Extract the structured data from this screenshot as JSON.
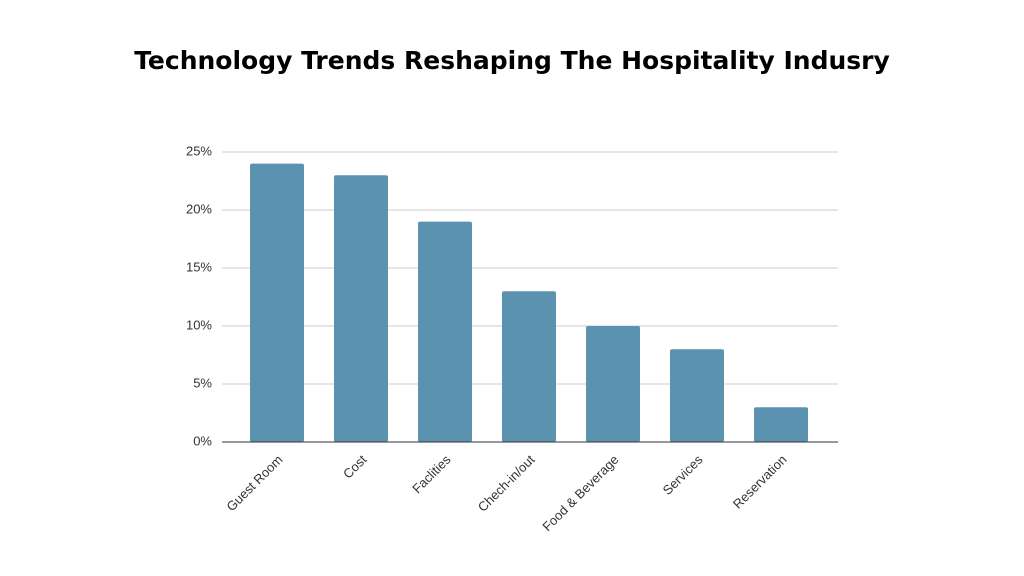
{
  "chart_data": {
    "type": "bar",
    "title": "Technology Trends Reshaping The Hospitality Indusry",
    "categories": [
      "Guest Room",
      "Cost",
      "Faclities",
      "Chech-in/out",
      "Food & Beverage",
      "Services",
      "Reservation"
    ],
    "values": [
      24,
      23,
      19,
      13,
      10,
      8,
      3
    ],
    "color": "#5b92b0",
    "ylim": [
      0,
      25
    ],
    "yticks": [
      {
        "value": 0,
        "label": "0%"
      },
      {
        "value": 5,
        "label": "5%"
      },
      {
        "value": 10,
        "label": "10%"
      },
      {
        "value": 15,
        "label": "15%"
      },
      {
        "value": 20,
        "label": "20%"
      },
      {
        "value": 25,
        "label": "25%"
      }
    ],
    "grid": true
  }
}
